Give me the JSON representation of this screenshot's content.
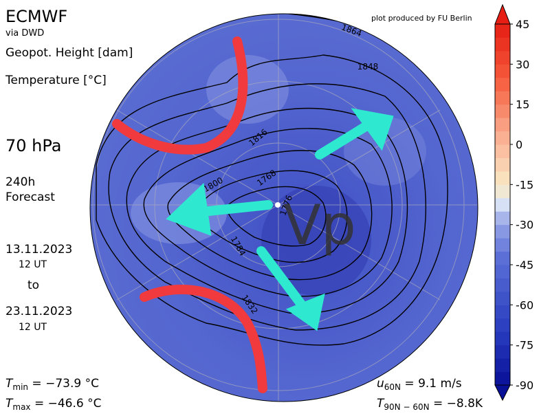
{
  "header": {
    "title": "ECMWF",
    "source": "via DWD",
    "credit": "plot produced by FU Berlin"
  },
  "info": {
    "field1": "Geopot. Height [dam]",
    "field2": "Temperature [°C]",
    "level": "70 hPa",
    "forecast": [
      "240h",
      "Forecast"
    ],
    "start_date": "13.11.2023",
    "start_time": "12 UT",
    "to": "to",
    "end_date": "23.11.2023",
    "end_time": "12 UT"
  },
  "stats": {
    "tmin": {
      "symbol": "T",
      "sub": "min",
      "text": " =  −73.9 °C"
    },
    "tmax": {
      "symbol": "T",
      "sub": "max",
      "text": " =  −46.6 °C"
    },
    "u60": {
      "symbol": "u",
      "sub": "60N",
      "text": " = 9.1 m/s"
    },
    "t90": {
      "symbol": "T",
      "sub": "90N − 60N",
      "text": " = −8.8K"
    }
  },
  "contour_labels": [
    "1864",
    "1848",
    "1816",
    "1800",
    "1768",
    "1776",
    "1784",
    "1832"
  ],
  "annotation": "Vp",
  "colorbar": {
    "lim": [
      -90,
      45
    ],
    "ticks": [
      45,
      30,
      15,
      0,
      -15,
      -30,
      -45,
      -60,
      -75,
      -90
    ]
  }
}
